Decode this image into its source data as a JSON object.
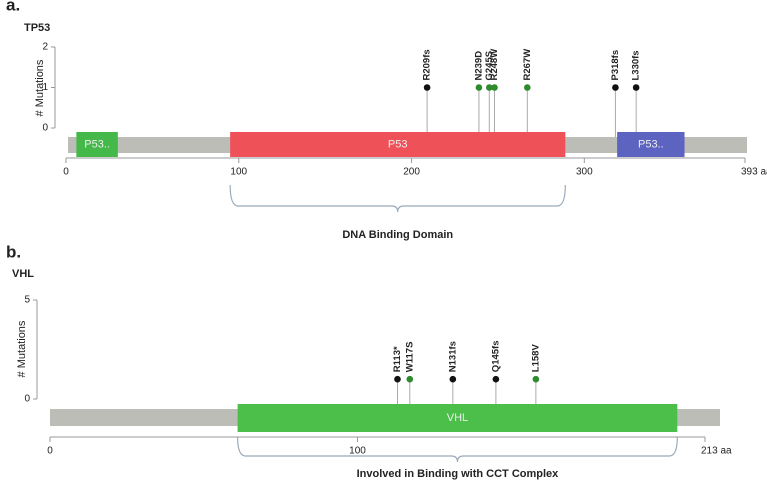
{
  "chart_data": [
    {
      "type": "lollipop",
      "panel_label": "a.",
      "title": "TP53",
      "y_label": "# Mutations",
      "xlim": [
        0,
        393
      ],
      "xticks": [
        0,
        100,
        200,
        300,
        {
          "value": 393,
          "label": "393 aa"
        }
      ],
      "ylim": [
        0,
        2
      ],
      "yticks": [
        0,
        1,
        2
      ],
      "backbone_color": "#bdbdb7",
      "domains": [
        {
          "name": "P53..",
          "start": 6,
          "end": 30,
          "color": "#45b84a"
        },
        {
          "name": "P53",
          "start": 95,
          "end": 289,
          "color": "#ef5159"
        },
        {
          "name": "P53..",
          "start": 319,
          "end": 358,
          "color": "#5c63c0"
        }
      ],
      "mutations": [
        {
          "label": "R209fs",
          "position": 209,
          "count": 1,
          "color": "#111111"
        },
        {
          "label": "N239D",
          "position": 239,
          "count": 1,
          "color": "#2e8b2e"
        },
        {
          "label": "G245S",
          "position": 245,
          "count": 1,
          "color": "#2e8b2e"
        },
        {
          "label": "R248W",
          "position": 248,
          "count": 1,
          "color": "#2e8b2e"
        },
        {
          "label": "R267W",
          "position": 267,
          "count": 1,
          "color": "#2e8b2e"
        },
        {
          "label": "P318fs",
          "position": 318,
          "count": 1,
          "color": "#111111"
        },
        {
          "label": "L330fs",
          "position": 330,
          "count": 1,
          "color": "#111111"
        }
      ],
      "annotation": {
        "text": "DNA Binding Domain",
        "start": 95,
        "end": 289
      }
    },
    {
      "type": "lollipop",
      "panel_label": "b.",
      "title": "VHL",
      "y_label": "# Mutations",
      "xlim": [
        0,
        213
      ],
      "xticks": [
        0,
        100,
        {
          "value": 213,
          "label": "213 aa"
        }
      ],
      "ylim": [
        0,
        5
      ],
      "yticks": [
        0,
        5
      ],
      "backbone_color": "#bdbdb7",
      "domains": [
        {
          "name": "VHL",
          "start": 61,
          "end": 204,
          "color": "#4cbf4a"
        }
      ],
      "mutations": [
        {
          "label": "R113*",
          "position": 113,
          "count": 1,
          "color": "#111111"
        },
        {
          "label": "W117S",
          "position": 117,
          "count": 1,
          "color": "#2e8b2e"
        },
        {
          "label": "N131fs",
          "position": 131,
          "count": 1,
          "color": "#111111"
        },
        {
          "label": "Q145fs",
          "position": 145,
          "count": 1,
          "color": "#111111"
        },
        {
          "label": "L158V",
          "position": 158,
          "count": 1,
          "color": "#2e8b2e"
        }
      ],
      "annotation": {
        "text": "Involved in Binding with CCT Complex",
        "start": 61,
        "end": 204
      }
    }
  ]
}
